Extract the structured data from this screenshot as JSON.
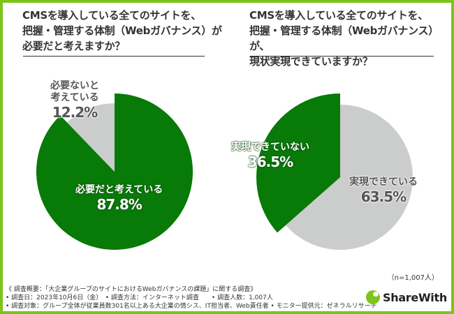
{
  "colors": {
    "border": "#7cc418",
    "green": "#077a07",
    "gray": "#cbcccc"
  },
  "chart_data": [
    {
      "type": "pie",
      "title": "CMSを導入している全てのサイトを、\n把握・管理する体制（Webガバナンス）が\n必要だと考えますか？",
      "title_lines": [
        "CMSを導入している全てのサイトを、",
        "把握・管理する体制（Webガバナンス）が",
        "必要だと考えますか？"
      ],
      "slices": [
        {
          "label": "必要だと考えている",
          "value": 87.8,
          "value_label": "87.8%",
          "color": "#077a07"
        },
        {
          "label_lines": [
            "必要ないと",
            "考えている"
          ],
          "label": "必要ないと考えている",
          "value": 12.2,
          "value_label": "12.2%",
          "color": "#cbcccc"
        }
      ]
    },
    {
      "type": "pie",
      "title": "CMSを導入している全てのサイトを、\n把握・管理する体制（Webガバナンス）が、\n現状実現できていますか？",
      "title_lines": [
        "CMSを導入している全てのサイトを、",
        "把握・管理する体制（Webガバナンス）が、",
        "現状実現できていますか？"
      ],
      "slices": [
        {
          "label": "実現できている",
          "value": 63.5,
          "value_label": "63.5%",
          "color": "#cbcccc"
        },
        {
          "label": "実現できていない",
          "value": 36.5,
          "value_label": "36.5%",
          "color": "#077a07"
        }
      ]
    }
  ],
  "sample_size": "（n=1,007人）",
  "notes": [
    "《 調査概要：「大企業グループのサイトにおけるWebガバナンスの課題」に関する調査》",
    "• 調査日：2023年10月6日（金）　• 調査方法：インターネット調査　　• 調査人数：1,007人",
    "• 調査対象：グループ全体が従業員数301名以上ある大企業の情シス、IT担当者、Web責任者 • モニター提供元：ゼネラルリサーチ"
  ],
  "logo": "ShareWith"
}
